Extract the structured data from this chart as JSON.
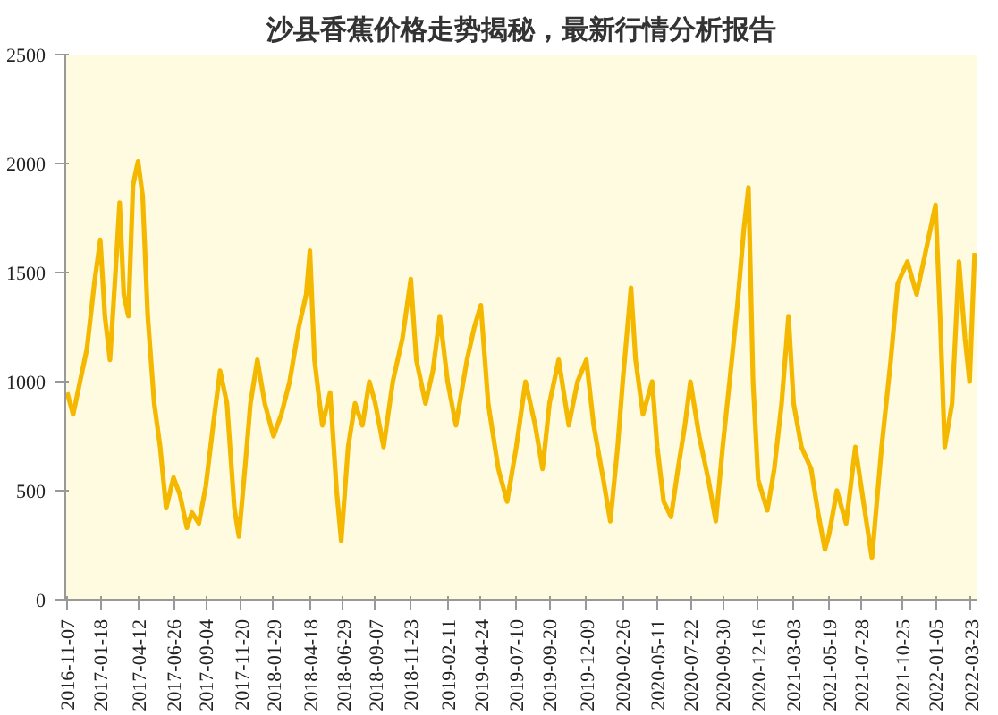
{
  "chart_data": {
    "type": "line",
    "title": "沙县香蕉价格走势揭秘，最新行情分析报告",
    "x": [
      "2016-11-07",
      "2016-11-20",
      "2016-12-05",
      "2016-12-20",
      "2017-01-05",
      "2017-01-18",
      "2017-01-28",
      "2017-02-08",
      "2017-02-20",
      "2017-03-01",
      "2017-03-10",
      "2017-03-20",
      "2017-03-30",
      "2017-04-10",
      "2017-04-20",
      "2017-05-01",
      "2017-05-15",
      "2017-05-28",
      "2017-06-10",
      "2017-06-26",
      "2017-07-10",
      "2017-07-25",
      "2017-08-05",
      "2017-08-20",
      "2017-09-04",
      "2017-09-20",
      "2017-10-05",
      "2017-10-20",
      "2017-11-05",
      "2017-11-15",
      "2017-11-28",
      "2017-12-10",
      "2017-12-25",
      "2018-01-10",
      "2018-01-29",
      "2018-02-15",
      "2018-03-05",
      "2018-03-25",
      "2018-04-10",
      "2018-04-18",
      "2018-04-28",
      "2018-05-15",
      "2018-06-01",
      "2018-06-15",
      "2018-06-25",
      "2018-07-10",
      "2018-07-25",
      "2018-08-10",
      "2018-08-25",
      "2018-09-07",
      "2018-09-25",
      "2018-10-15",
      "2018-11-05",
      "2018-11-23",
      "2018-12-05",
      "2018-12-25",
      "2019-01-10",
      "2019-01-25",
      "2019-02-11",
      "2019-03-01",
      "2019-03-25",
      "2019-04-10",
      "2019-04-24",
      "2019-05-10",
      "2019-06-01",
      "2019-06-20",
      "2019-07-10",
      "2019-07-30",
      "2019-08-20",
      "2019-09-05",
      "2019-09-20",
      "2019-10-10",
      "2019-11-01",
      "2019-11-20",
      "2019-12-09",
      "2019-12-25",
      "2020-01-15",
      "2020-01-30",
      "2020-02-15",
      "2020-02-26",
      "2020-03-15",
      "2020-03-25",
      "2020-04-10",
      "2020-04-30",
      "2020-05-11",
      "2020-05-25",
      "2020-06-10",
      "2020-06-25",
      "2020-07-10",
      "2020-07-22",
      "2020-08-10",
      "2020-08-30",
      "2020-09-15",
      "2020-09-30",
      "2020-10-15",
      "2020-11-01",
      "2020-11-15",
      "2020-11-25",
      "2020-12-05",
      "2020-12-16",
      "2021-01-05",
      "2021-01-20",
      "2021-02-05",
      "2021-02-20",
      "2021-03-03",
      "2021-03-20",
      "2021-04-10",
      "2021-04-25",
      "2021-05-10",
      "2021-05-19",
      "2021-06-05",
      "2021-06-25",
      "2021-07-15",
      "2021-08-05",
      "2021-08-20",
      "2021-09-10",
      "2021-09-30",
      "2021-10-15",
      "2021-11-05",
      "2021-11-25",
      "2021-12-15",
      "2022-01-05",
      "2022-01-15",
      "2022-01-25",
      "2022-02-10",
      "2022-02-25",
      "2022-03-10",
      "2022-03-20",
      "2022-03-31"
    ],
    "series": [
      {
        "color": "#f5b800",
        "values": [
          950,
          850,
          1000,
          1150,
          1450,
          1650,
          1300,
          1100,
          1500,
          1820,
          1400,
          1300,
          1900,
          2010,
          1850,
          1300,
          900,
          700,
          420,
          560,
          480,
          330,
          400,
          350,
          520,
          800,
          1050,
          900,
          420,
          290,
          600,
          900,
          1100,
          900,
          750,
          850,
          1000,
          1250,
          1400,
          1600,
          1100,
          800,
          950,
          500,
          270,
          700,
          900,
          800,
          1000,
          900,
          700,
          1000,
          1200,
          1470,
          1100,
          900,
          1050,
          1300,
          1000,
          800,
          1100,
          1250,
          1350,
          900,
          600,
          450,
          700,
          1000,
          800,
          600,
          900,
          1100,
          800,
          1000,
          1100,
          800,
          550,
          360,
          700,
          1000,
          1430,
          1100,
          850,
          1000,
          700,
          450,
          380,
          600,
          800,
          1000,
          750,
          550,
          360,
          700,
          1000,
          1350,
          1700,
          1890,
          1000,
          550,
          410,
          600,
          900,
          1300,
          900,
          700,
          600,
          400,
          230,
          300,
          500,
          350,
          700,
          400,
          190,
          700,
          1100,
          1450,
          1550,
          1400,
          1600,
          1810,
          1300,
          700,
          900,
          1550,
          1200,
          1000,
          1590
        ]
      }
    ],
    "xlim": [
      "2016-11-03",
      "2022-04-06"
    ],
    "xticks": [
      "2016-11-07",
      "2017-01-18",
      "2017-04-12",
      "2017-06-26",
      "2017-09-04",
      "2017-11-20",
      "2018-01-29",
      "2018-04-18",
      "2018-06-29",
      "2018-09-07",
      "2018-11-23",
      "2019-02-11",
      "2019-04-24",
      "2019-07-10",
      "2019-09-20",
      "2019-12-09",
      "2020-02-26",
      "2020-05-11",
      "2020-07-22",
      "2020-09-30",
      "2020-12-16",
      "2021-03-03",
      "2021-05-19",
      "2021-07-28",
      "2021-10-25",
      "2022-01-05",
      "2022-03-23"
    ],
    "ylim": [
      0,
      2500
    ],
    "yticks": [
      0,
      500,
      1000,
      1500,
      2000,
      2500
    ],
    "grid": false,
    "marker": "none",
    "line_style": "solid"
  }
}
